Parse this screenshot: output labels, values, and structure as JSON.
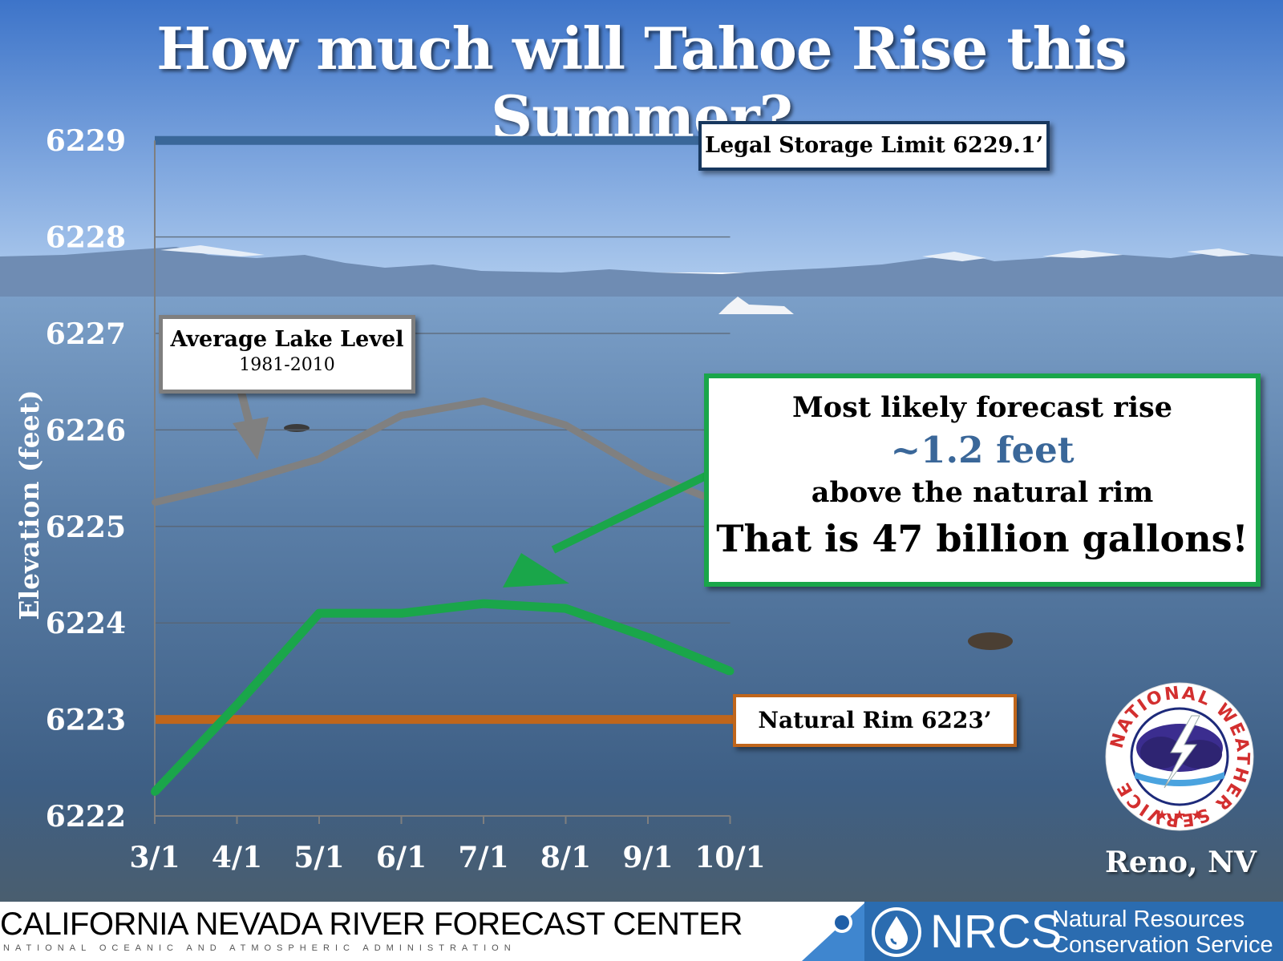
{
  "title": "How much will Tahoe Rise this Summer?",
  "chart_data": {
    "type": "line",
    "x": [
      "3/1",
      "4/1",
      "5/1",
      "6/1",
      "7/1",
      "8/1",
      "9/1",
      "10/1"
    ],
    "yticks": [
      "6222",
      "6223",
      "6224",
      "6225",
      "6226",
      "6227",
      "6228",
      "6229"
    ],
    "ylim": [
      6222,
      6229
    ],
    "ylabel": "Elevation (feet)",
    "grid": true,
    "series": [
      {
        "values": [
          6225.25,
          6225.45,
          6225.7,
          6226.15,
          6226.3,
          6226.05,
          6225.55,
          6225.2
        ],
        "color": "#808080"
      },
      {
        "values": [
          6222.25,
          6223.15,
          6224.1,
          6224.1,
          6224.2,
          6224.15,
          6223.85,
          6223.5
        ],
        "color": "#1aa64a"
      }
    ],
    "reference_lines": [
      {
        "value": 6229,
        "color": "#3a6799"
      },
      {
        "value": 6223,
        "color": "#c0661b"
      }
    ],
    "annotations": {
      "legal_limit": "Legal Storage Limit 6229.1’",
      "natural_rim": "Natural Rim 6223’",
      "average_title": "Average Lake Level",
      "average_period": "1981-2010",
      "forecast_line1": "Most likely forecast rise",
      "forecast_line2": "~1.2 feet",
      "forecast_line3": "above the natural rim",
      "forecast_line4": "That is 47 billion gallons!"
    }
  },
  "logo": {
    "ring_text": "NATIONAL WEATHER SERVICE",
    "location": "Reno, NV"
  },
  "footer": {
    "org": "CALIFORNIA NEVADA RIVER FORECAST CENTER",
    "sub": "NATIONAL OCEANIC AND ATMOSPHERIC ADMINISTRATION",
    "nrcs_abbr": "NRCS",
    "nrcs_name_1": "Natural Resources",
    "nrcs_name_2": "Conservation Service"
  },
  "colors": {
    "sky_top": "#3d74c9",
    "sky_horizon": "#a9c7ec",
    "water": "#3e5f85",
    "nrcs_blue": "#2b6cb0"
  }
}
